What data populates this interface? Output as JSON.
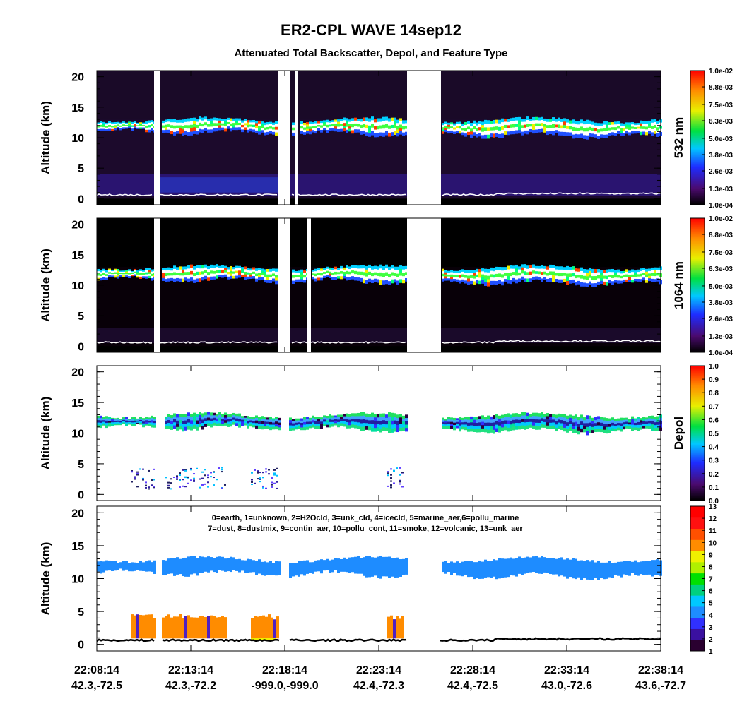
{
  "title": "ER2-CPL WAVE 14sep12",
  "subtitle": "Attenuated Total Backscatter, Depol, and Feature Type",
  "chart_data": [
    {
      "type": "heatmap",
      "y_label": "Altitude (km)",
      "ylim": [
        -1,
        21
      ],
      "yticks": [
        0,
        5,
        10,
        15,
        20
      ],
      "colorbar_label": "532 nm",
      "clim": [
        0.0001,
        0.01
      ],
      "colorbar_ticks": [
        {
          "value": 0.01,
          "label": "1.0e-02"
        },
        {
          "value": 0.0088,
          "label": "8.8e-03"
        },
        {
          "value": 0.0075,
          "label": "7.5e-03"
        },
        {
          "value": 0.0063,
          "label": "6.3e-03"
        },
        {
          "value": 0.005,
          "label": "5.0e-03"
        },
        {
          "value": 0.0038,
          "label": "3.8e-03"
        },
        {
          "value": 0.0026,
          "label": "2.6e-03"
        },
        {
          "value": 0.0013,
          "label": "1.3e-03"
        },
        {
          "value": 0.0001,
          "label": "1.0e-04"
        }
      ]
    },
    {
      "type": "heatmap",
      "y_label": "Altitude (km)",
      "ylim": [
        -1,
        21
      ],
      "yticks": [
        0,
        5,
        10,
        15,
        20
      ],
      "colorbar_label": "1064 nm",
      "clim": [
        0.0001,
        0.01
      ],
      "colorbar_ticks": [
        {
          "value": 0.01,
          "label": "1.0e-02"
        },
        {
          "value": 0.0088,
          "label": "8.8e-03"
        },
        {
          "value": 0.0075,
          "label": "7.5e-03"
        },
        {
          "value": 0.0063,
          "label": "6.3e-03"
        },
        {
          "value": 0.005,
          "label": "5.0e-03"
        },
        {
          "value": 0.0038,
          "label": "3.8e-03"
        },
        {
          "value": 0.0026,
          "label": "2.6e-03"
        },
        {
          "value": 0.0013,
          "label": "1.3e-03"
        },
        {
          "value": 0.0001,
          "label": "1.0e-04"
        }
      ]
    },
    {
      "type": "heatmap",
      "y_label": "Altitude (km)",
      "ylim": [
        -1,
        21
      ],
      "yticks": [
        0,
        5,
        10,
        15,
        20
      ],
      "colorbar_label": "Depol",
      "clim": [
        0,
        1
      ],
      "colorbar_ticks": [
        {
          "value": 1,
          "label": "1.0"
        },
        {
          "value": 0.9,
          "label": "0.9"
        },
        {
          "value": 0.8,
          "label": "0.8"
        },
        {
          "value": 0.7,
          "label": "0.7"
        },
        {
          "value": 0.6,
          "label": "0.6"
        },
        {
          "value": 0.5,
          "label": "0.5"
        },
        {
          "value": 0.4,
          "label": "0.4"
        },
        {
          "value": 0.3,
          "label": "0.3"
        },
        {
          "value": 0.2,
          "label": "0.2"
        },
        {
          "value": 0.1,
          "label": "0.1"
        },
        {
          "value": 0,
          "label": "0.0"
        }
      ]
    },
    {
      "type": "feature",
      "y_label": "Altitude (km)",
      "ylim": [
        -1,
        21
      ],
      "yticks": [
        0,
        5,
        10,
        15,
        20
      ],
      "clim": [
        1,
        13
      ],
      "colorbar_ticks": [
        13,
        12,
        11,
        10,
        9,
        8,
        7,
        6,
        5,
        4,
        3,
        2,
        1
      ],
      "legend": [
        "0=earth, 1=unknown, 2=H2Ocld, 3=unk_cld, 4=icecld, 5=marine_aer,6=pollu_marine",
        "7=dust, 8=dustmix, 9=contin_aer, 10=pollu_cont, 11=smoke, 12=volcanic, 13=unk_aer"
      ],
      "x_tick_labels": [
        [
          "22:08:14",
          "42.3,-72.5"
        ],
        [
          "22:13:14",
          "42.3,-72.2"
        ],
        [
          "22:18:14",
          "-999.0,-999.0"
        ],
        [
          "22:23:14",
          "42.4,-72.3"
        ],
        [
          "22:28:14",
          "42.4,-72.5"
        ],
        [
          "22:33:14",
          "43.0,-72.6"
        ],
        [
          "22:38:14",
          "43.6,-72.7"
        ]
      ]
    }
  ]
}
